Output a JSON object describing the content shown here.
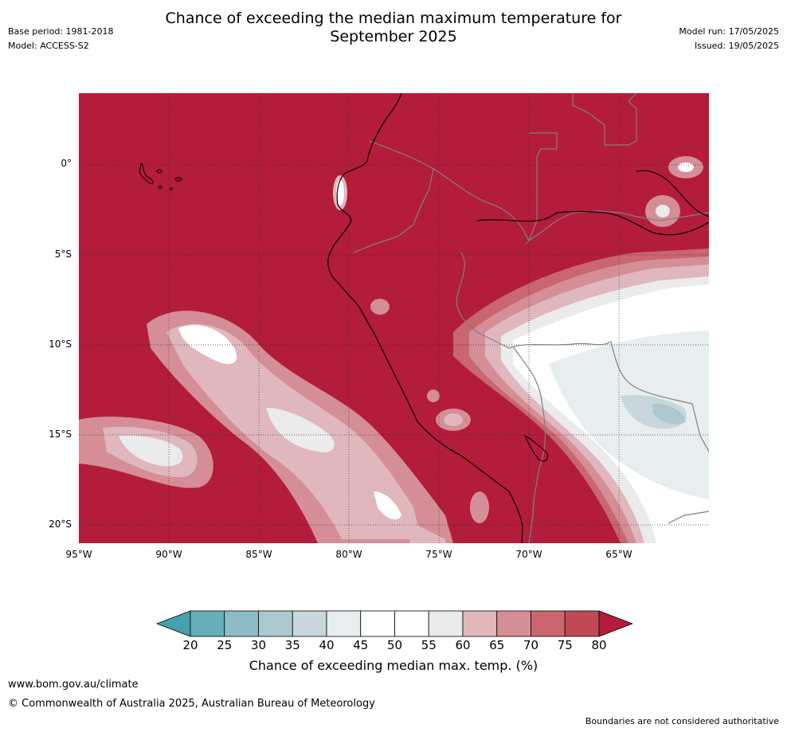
{
  "header": {
    "title_line1": "Chance of exceeding the median maximum temperature for",
    "title_line2": "September 2025",
    "base_period": "Base period: 1981-2018",
    "model": "Model: ACCESS-S2",
    "model_run": "Model run: 17/05/2025",
    "issued": "Issued: 19/05/2025"
  },
  "map": {
    "region": "Western South America and eastern Pacific",
    "lat_labels": [
      "0°",
      "5°S",
      "10°S",
      "15°S",
      "20°S"
    ],
    "lon_labels": [
      "95°W",
      "90°W",
      "85°W",
      "80°W",
      "75°W",
      "70°W",
      "65°W"
    ],
    "background_category": "above 80",
    "colors": {
      "high": "#b31c3b",
      "ocean_line": "#000000",
      "border_line": "#808080",
      "grid_line": "#333333"
    }
  },
  "colorbar": {
    "ticks": [
      "20",
      "25",
      "30",
      "35",
      "40",
      "45",
      "50",
      "55",
      "60",
      "65",
      "70",
      "75",
      "80"
    ],
    "colors": [
      "#46a0ad",
      "#67aebb",
      "#8dbcc4",
      "#adc8ce",
      "#c8d7dc",
      "#e8eef0",
      "#ffffff",
      "#ffffff",
      "#ebebeb",
      "#e0b7bc",
      "#d58e97",
      "#c9666f",
      "#bf4a55",
      "#b31c3b"
    ],
    "label": "Chance of exceeding median max. temp. (%)"
  },
  "footer": {
    "website": "www.bom.gov.au/climate",
    "copyright": "© Commonwealth of Australia 2025, Australian Bureau of Meteorology",
    "disclaimer": "Boundaries are not considered authoritative"
  }
}
